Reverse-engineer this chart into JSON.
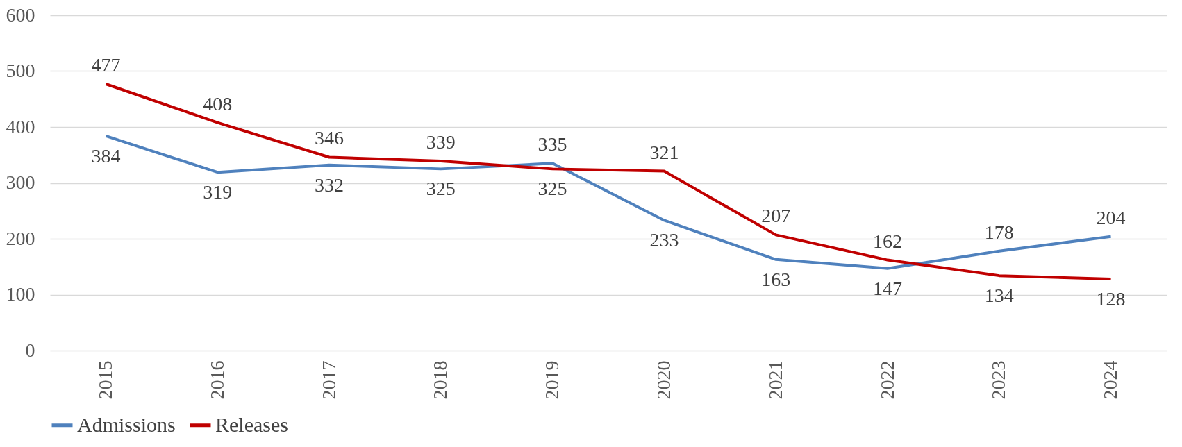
{
  "chart_data": {
    "type": "line",
    "categories": [
      "2015",
      "2016",
      "2017",
      "2018",
      "2019",
      "2020",
      "2021",
      "2022",
      "2023",
      "2024"
    ],
    "series": [
      {
        "name": "Admissions",
        "color": "#4f81bd",
        "values": [
          384,
          319,
          332,
          325,
          335,
          233,
          163,
          147,
          178,
          204
        ]
      },
      {
        "name": "Releases",
        "color": "#c00000",
        "values": [
          477,
          408,
          346,
          339,
          325,
          321,
          207,
          162,
          134,
          128
        ]
      }
    ],
    "ylim": [
      0,
      600
    ],
    "yticks": [
      0,
      100,
      200,
      300,
      400,
      500,
      600
    ],
    "grid": "y",
    "legend": "bottom",
    "data_labels": true,
    "marker": "none",
    "line_style": "solid"
  }
}
